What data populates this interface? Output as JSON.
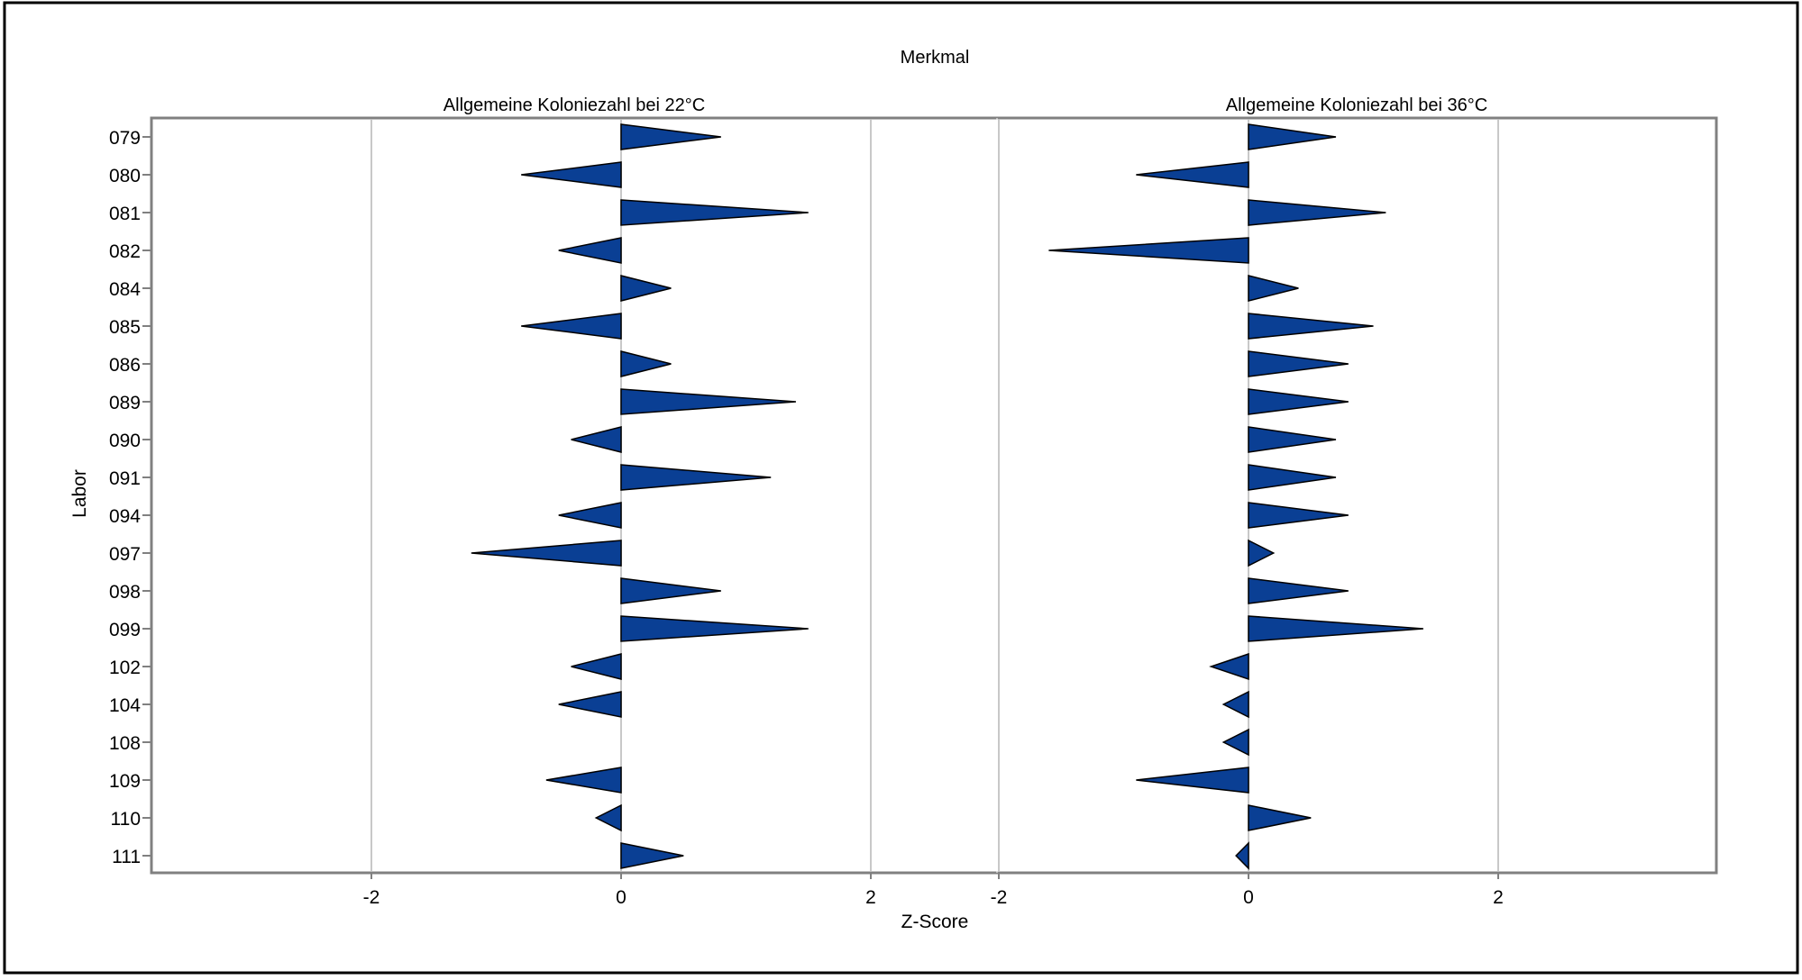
{
  "chart_data": {
    "type": "bar",
    "title": "Merkmal",
    "xlabel": "Z-Score",
    "ylabel": "Labor",
    "xlim": [
      -3.5,
      3.75
    ],
    "xticks": [
      -2,
      0,
      2
    ],
    "grid": true,
    "categories": [
      "079",
      "080",
      "081",
      "082",
      "084",
      "085",
      "086",
      "089",
      "090",
      "091",
      "094",
      "097",
      "098",
      "099",
      "102",
      "104",
      "108",
      "109",
      "110",
      "111"
    ],
    "panels": [
      {
        "name": "Allgemeine Koloniezahl bei 22°C",
        "values": [
          0.8,
          -0.8,
          1.5,
          -0.5,
          0.4,
          -0.8,
          0.4,
          1.4,
          -0.4,
          1.2,
          -0.5,
          -1.2,
          0.8,
          1.5,
          -0.4,
          -0.5,
          null,
          -0.6,
          -0.2,
          0.5
        ]
      },
      {
        "name": "Allgemeine Koloniezahl bei 36°C",
        "values": [
          0.7,
          -0.9,
          1.1,
          -1.6,
          0.4,
          1.0,
          0.8,
          0.8,
          0.7,
          0.7,
          0.8,
          0.2,
          0.8,
          1.4,
          -0.3,
          -0.2,
          -0.2,
          -0.9,
          0.5,
          -0.1
        ]
      }
    ],
    "colors": {
      "fill": "#0a3f94",
      "stroke": "#000000",
      "grid": "#c8c8c8",
      "frame": "#808080",
      "outer_border": "#000000"
    }
  }
}
